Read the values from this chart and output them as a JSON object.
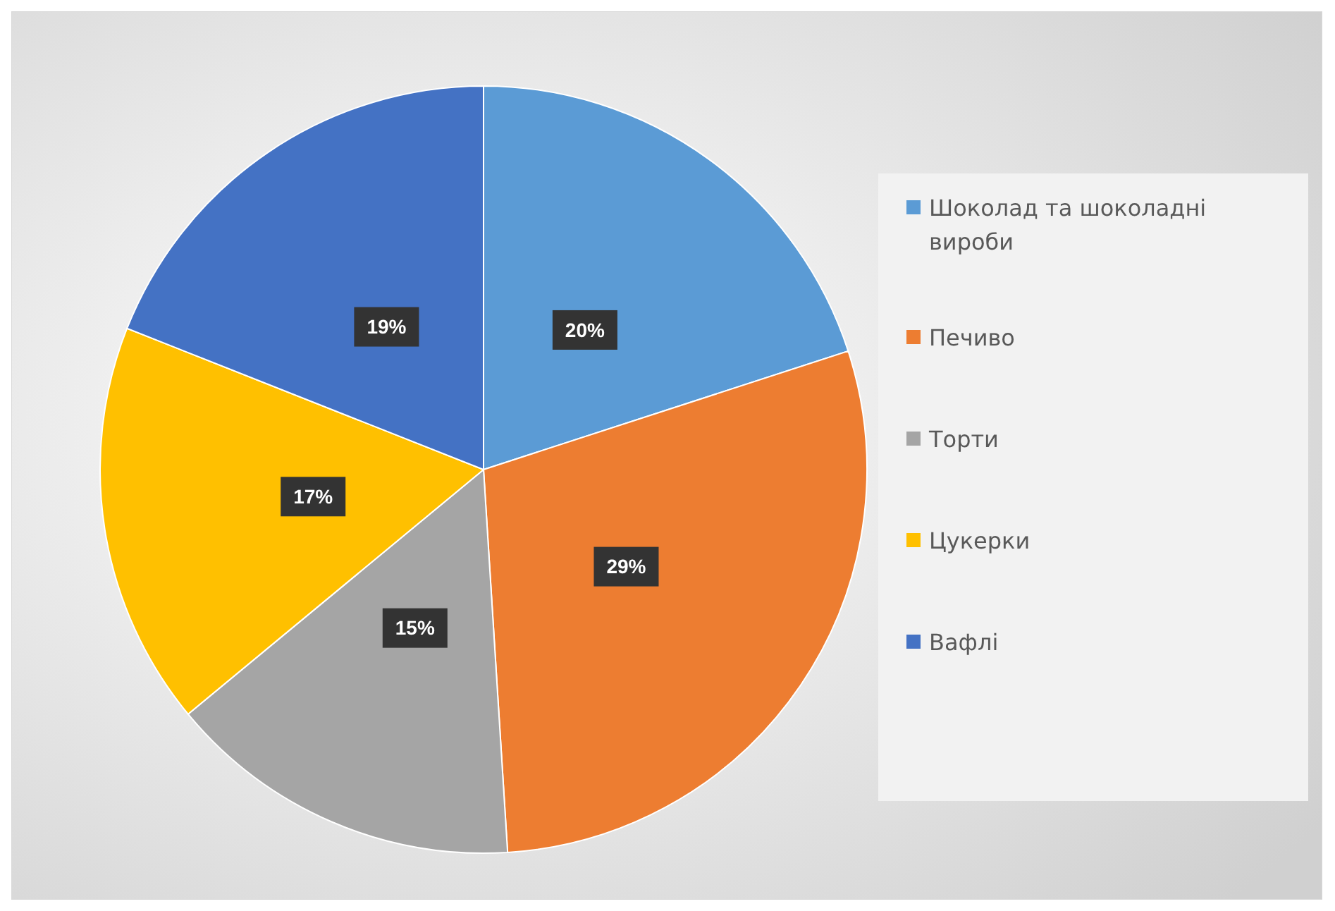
{
  "chart_data": {
    "type": "pie",
    "categories": [
      "Шоколад та шоколадні вироби",
      "Печиво",
      "Торти",
      "Цукерки",
      "Вафлі"
    ],
    "values": [
      20,
      29,
      15,
      17,
      19
    ],
    "colors": [
      "#5b9bd5",
      "#ed7d31",
      "#a5a5a5",
      "#ffc000",
      "#4472c4"
    ],
    "value_labels": [
      "20%",
      "29%",
      "15%",
      "17%",
      "19%"
    ],
    "legend": "right"
  }
}
